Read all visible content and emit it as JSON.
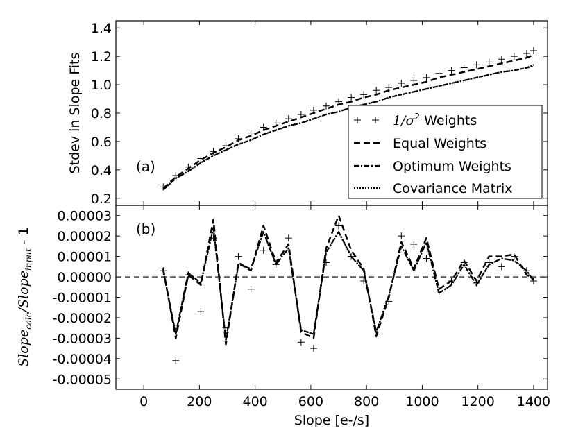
{
  "chart_data": [
    {
      "panel": "a",
      "type": "line",
      "annotation": "(a)",
      "ylabel": "Stdev in Slope Fits",
      "xlim": [
        -100,
        1450
      ],
      "ylim": [
        0.15,
        1.45
      ],
      "yticks": [
        "0.2",
        "0.4",
        "0.6",
        "0.8",
        "1.0",
        "1.2",
        "1.4"
      ],
      "ytick_values": [
        0.2,
        0.4,
        0.6,
        0.8,
        1.0,
        1.2,
        1.4
      ],
      "legend_position": "lower-right",
      "x": [
        70,
        115,
        160,
        205,
        250,
        295,
        340,
        385,
        430,
        475,
        520,
        565,
        610,
        655,
        700,
        745,
        790,
        835,
        880,
        925,
        970,
        1015,
        1060,
        1105,
        1150,
        1195,
        1240,
        1285,
        1330,
        1375,
        1400
      ],
      "series": [
        {
          "name": "1/σ² Weights",
          "label_math": "1/σ",
          "label_sup": "2",
          "label_tail": " Weights",
          "style": "plus",
          "values": [
            0.28,
            0.36,
            0.42,
            0.48,
            0.53,
            0.57,
            0.62,
            0.66,
            0.7,
            0.73,
            0.76,
            0.79,
            0.82,
            0.85,
            0.88,
            0.91,
            0.93,
            0.96,
            0.98,
            1.01,
            1.03,
            1.05,
            1.08,
            1.1,
            1.12,
            1.14,
            1.16,
            1.18,
            1.2,
            1.22,
            1.24
          ]
        },
        {
          "name": "Equal Weights",
          "style": "dashed",
          "values": [
            0.27,
            0.35,
            0.41,
            0.47,
            0.52,
            0.56,
            0.61,
            0.64,
            0.68,
            0.71,
            0.74,
            0.77,
            0.8,
            0.83,
            0.86,
            0.88,
            0.91,
            0.93,
            0.96,
            0.98,
            1.0,
            1.02,
            1.05,
            1.07,
            1.09,
            1.11,
            1.13,
            1.15,
            1.17,
            1.19,
            1.21
          ]
        },
        {
          "name": "Optimum Weights",
          "style": "dashdot",
          "values": [
            0.26,
            0.34,
            0.39,
            0.45,
            0.5,
            0.54,
            0.58,
            0.61,
            0.65,
            0.68,
            0.71,
            0.73,
            0.76,
            0.79,
            0.81,
            0.84,
            0.86,
            0.88,
            0.91,
            0.93,
            0.95,
            0.97,
            0.99,
            1.01,
            1.03,
            1.05,
            1.07,
            1.09,
            1.1,
            1.12,
            1.13
          ]
        },
        {
          "name": "Covariance Matrix",
          "style": "dotted",
          "values": [
            0.26,
            0.34,
            0.39,
            0.45,
            0.5,
            0.54,
            0.58,
            0.61,
            0.65,
            0.68,
            0.71,
            0.73,
            0.76,
            0.79,
            0.81,
            0.84,
            0.86,
            0.88,
            0.91,
            0.93,
            0.95,
            0.97,
            0.99,
            1.01,
            1.03,
            1.05,
            1.07,
            1.09,
            1.1,
            1.12,
            1.14
          ]
        }
      ]
    },
    {
      "panel": "b",
      "type": "line",
      "annotation": "(b)",
      "ylabel_math": "Slope",
      "ylabel_sub1": "calc",
      "ylabel_sep": "/Slope",
      "ylabel_sub2": "input",
      "ylabel_tail": " - 1",
      "xlabel": "Slope [e-/s]",
      "xlim": [
        -100,
        1450
      ],
      "ylim": [
        -5.5e-05,
        3.5e-05
      ],
      "yticks": [
        "0.00003",
        "0.00002",
        "0.00001",
        "0.00000",
        "-0.00001",
        "-0.00002",
        "-0.00003",
        "-0.00004",
        "-0.00005"
      ],
      "ytick_values": [
        3e-05,
        2e-05,
        1e-05,
        0.0,
        -1e-05,
        -2e-05,
        -3e-05,
        -4e-05,
        -5e-05
      ],
      "xticks": [
        "0",
        "200",
        "400",
        "600",
        "800",
        "1000",
        "1200",
        "1400"
      ],
      "xtick_values": [
        0,
        200,
        400,
        600,
        800,
        1000,
        1200,
        1400
      ],
      "reference_line": 0.0,
      "x": [
        70,
        115,
        160,
        205,
        250,
        295,
        340,
        385,
        430,
        475,
        520,
        565,
        610,
        655,
        700,
        745,
        790,
        835,
        880,
        925,
        970,
        1015,
        1060,
        1105,
        1150,
        1195,
        1240,
        1285,
        1330,
        1375,
        1400
      ],
      "series": [
        {
          "name": "1/σ² Weights",
          "style": "plus",
          "values": [
            3e-06,
            -4.1e-05,
            1e-06,
            -1.7e-05,
            1.9e-05,
            -2.5e-05,
            1e-05,
            -6e-06,
            1.3e-05,
            6e-06,
            1.9e-05,
            -3.2e-05,
            -3.5e-05,
            7e-06,
            2.5e-05,
            1e-05,
            -2e-06,
            -2.8e-05,
            -1.2e-05,
            2e-05,
            1.6e-05,
            9e-06,
            -7e-06,
            -2e-06,
            7e-06,
            -3e-06,
            7e-06,
            5e-06,
            1e-05,
            3e-06,
            -2e-06
          ]
        },
        {
          "name": "Equal Weights",
          "style": "dashed",
          "values": [
            4e-06,
            -3e-05,
            1e-06,
            -4e-06,
            2.8e-05,
            -3.3e-05,
            7e-06,
            3e-06,
            2.5e-05,
            7e-06,
            1.6e-05,
            -2.7e-05,
            -3e-05,
            1.4e-05,
            3e-05,
            1.3e-05,
            4e-06,
            -2.9e-05,
            -1e-05,
            1.7e-05,
            4e-06,
            1.9e-05,
            -6e-06,
            -2e-06,
            8e-06,
            -2e-06,
            1e-05,
            1e-05,
            1.1e-05,
            1e-06,
            -1e-06
          ]
        },
        {
          "name": "Optimum Weights",
          "style": "dashdot",
          "values": [
            3e-06,
            -2.8e-05,
            2e-06,
            -3e-06,
            2.4e-05,
            -3.1e-05,
            6e-06,
            4e-06,
            2.2e-05,
            6e-06,
            1.4e-05,
            -2.6e-05,
            -2.8e-05,
            1.2e-05,
            2.2e-05,
            1e-05,
            3e-06,
            -2.7e-05,
            -9e-06,
            1.5e-05,
            3e-06,
            1.7e-05,
            -8e-06,
            -4e-06,
            6e-06,
            -4e-06,
            6e-06,
            9e-06,
            8e-06,
            3e-06,
            -2e-06
          ]
        },
        {
          "name": "Covariance Matrix",
          "style": "dotted",
          "values": [
            3e-06,
            -2.8e-05,
            2e-06,
            -3e-06,
            2.4e-05,
            -3.1e-05,
            6e-06,
            4e-06,
            2.2e-05,
            6e-06,
            1.4e-05,
            -2.6e-05,
            -2.8e-05,
            1.2e-05,
            2.2e-05,
            1e-05,
            3e-06,
            -2.7e-05,
            -9e-06,
            1.5e-05,
            3e-06,
            1.7e-05,
            -8e-06,
            -4e-06,
            6e-06,
            -4e-06,
            6e-06,
            9e-06,
            8e-06,
            3e-06,
            -2e-06
          ]
        }
      ]
    }
  ]
}
